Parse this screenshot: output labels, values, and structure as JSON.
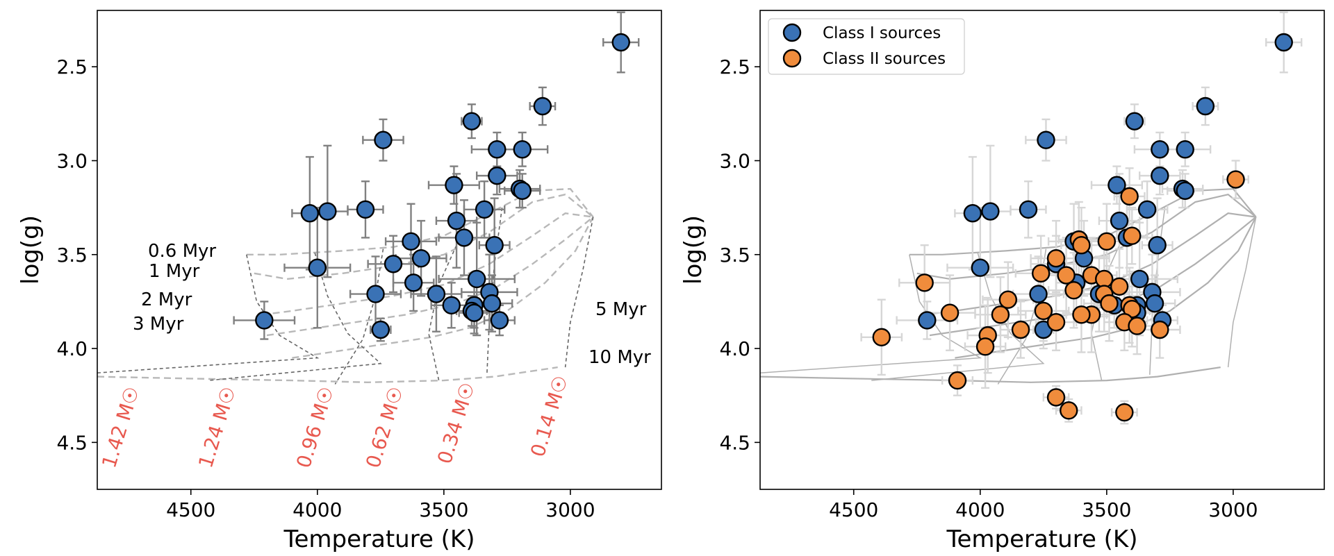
{
  "chart_data": [
    {
      "type": "scatter",
      "panel": "left",
      "xlabel": "Temperature (K)",
      "ylabel": "log(g)",
      "xlim": [
        4870,
        2640
      ],
      "ylim": [
        4.75,
        2.2
      ],
      "xticks": [
        "4500",
        "4000",
        "3500",
        "3000"
      ],
      "yticks": [
        "2.5",
        "3.0",
        "3.5",
        "4.0",
        "4.5"
      ],
      "x_inverted": true,
      "y_inverted": true,
      "grid": false,
      "series": [
        {
          "color": "#3a72b5",
          "points": [
            {
              "x": 2800,
              "y": 2.37,
              "xerr": 70,
              "yerr": 0.16
            },
            {
              "x": 3110,
              "y": 2.71,
              "xerr": 50,
              "yerr": 0.1
            },
            {
              "x": 3390,
              "y": 2.79,
              "xerr": 40,
              "yerr": 0.09
            },
            {
              "x": 3740,
              "y": 2.89,
              "xerr": 80,
              "yerr": 0.11
            },
            {
              "x": 3290,
              "y": 2.94,
              "xerr": 100,
              "yerr": 0.09
            },
            {
              "x": 3190,
              "y": 2.94,
              "xerr": 100,
              "yerr": 0.09
            },
            {
              "x": 3290,
              "y": 3.08,
              "xerr": 80,
              "yerr": 0.1
            },
            {
              "x": 3460,
              "y": 3.13,
              "xerr": 100,
              "yerr": 0.1
            },
            {
              "x": 3200,
              "y": 3.15,
              "xerr": 80,
              "yerr": 0.1
            },
            {
              "x": 3190,
              "y": 3.16,
              "xerr": 70,
              "yerr": 0.09
            },
            {
              "x": 3340,
              "y": 3.26,
              "xerr": 80,
              "yerr": 0.15
            },
            {
              "x": 3810,
              "y": 3.26,
              "xerr": 70,
              "yerr": 0.15
            },
            {
              "x": 4030,
              "y": 3.28,
              "xerr": 70,
              "yerr": 0.3
            },
            {
              "x": 3960,
              "y": 3.27,
              "xerr": 80,
              "yerr": 0.35
            },
            {
              "x": 3450,
              "y": 3.32,
              "xerr": 80,
              "yerr": 0.25
            },
            {
              "x": 3420,
              "y": 3.41,
              "xerr": 100,
              "yerr": 0.2
            },
            {
              "x": 3630,
              "y": 3.43,
              "xerr": 100,
              "yerr": 0.2
            },
            {
              "x": 3300,
              "y": 3.45,
              "xerr": 60,
              "yerr": 0.25
            },
            {
              "x": 3590,
              "y": 3.52,
              "xerr": 100,
              "yerr": 0.2
            },
            {
              "x": 3700,
              "y": 3.55,
              "xerr": 100,
              "yerr": 0.15
            },
            {
              "x": 4000,
              "y": 3.57,
              "xerr": 130,
              "yerr": 0.32
            },
            {
              "x": 3370,
              "y": 3.63,
              "xerr": 150,
              "yerr": 0.3
            },
            {
              "x": 3620,
              "y": 3.65,
              "xerr": 80,
              "yerr": 0.15
            },
            {
              "x": 3320,
              "y": 3.7,
              "xerr": 110,
              "yerr": 0.2
            },
            {
              "x": 3530,
              "y": 3.71,
              "xerr": 100,
              "yerr": 0.2
            },
            {
              "x": 3770,
              "y": 3.71,
              "xerr": 100,
              "yerr": 0.2
            },
            {
              "x": 3310,
              "y": 3.76,
              "xerr": 80,
              "yerr": 0.15
            },
            {
              "x": 3380,
              "y": 3.77,
              "xerr": 80,
              "yerr": 0.15
            },
            {
              "x": 3470,
              "y": 3.77,
              "xerr": 80,
              "yerr": 0.12
            },
            {
              "x": 3390,
              "y": 3.8,
              "xerr": 60,
              "yerr": 0.08
            },
            {
              "x": 3380,
              "y": 3.81,
              "xerr": 60,
              "yerr": 0.08
            },
            {
              "x": 3280,
              "y": 3.85,
              "xerr": 60,
              "yerr": 0.08
            },
            {
              "x": 4210,
              "y": 3.85,
              "xerr": 120,
              "yerr": 0.1
            },
            {
              "x": 3750,
              "y": 3.9,
              "xerr": 40,
              "yerr": 0.06
            }
          ]
        }
      ],
      "isochrone_labels": [
        "0.6 Myr",
        "1 Myr",
        "2 Myr",
        "3 Myr",
        "5 Myr",
        "10 Myr"
      ],
      "mass_track_labels": [
        "1.42 M☉",
        "1.24 M☉",
        "0.96 M☉",
        "0.62 M☉",
        "0.34 M☉",
        "0.14 M☉"
      ]
    },
    {
      "type": "scatter",
      "panel": "right",
      "xlabel": "Temperature (K)",
      "ylabel": "log(g)",
      "xlim": [
        4870,
        2640
      ],
      "ylim": [
        4.75,
        2.2
      ],
      "xticks": [
        "4500",
        "4000",
        "3500",
        "3000"
      ],
      "yticks": [
        "2.5",
        "3.0",
        "3.5",
        "4.0",
        "4.5"
      ],
      "x_inverted": true,
      "y_inverted": true,
      "grid": false,
      "legend": "top-left",
      "series": [
        {
          "name": "Class I sources",
          "color": "#3a72b5",
          "points": [
            {
              "x": 2800,
              "y": 2.37,
              "xerr": 70,
              "yerr": 0.16
            },
            {
              "x": 3110,
              "y": 2.71,
              "xerr": 50,
              "yerr": 0.1
            },
            {
              "x": 3390,
              "y": 2.79,
              "xerr": 40,
              "yerr": 0.09
            },
            {
              "x": 3740,
              "y": 2.89,
              "xerr": 80,
              "yerr": 0.11
            },
            {
              "x": 3290,
              "y": 2.94,
              "xerr": 100,
              "yerr": 0.09
            },
            {
              "x": 3190,
              "y": 2.94,
              "xerr": 100,
              "yerr": 0.09
            },
            {
              "x": 3290,
              "y": 3.08,
              "xerr": 80,
              "yerr": 0.1
            },
            {
              "x": 3460,
              "y": 3.13,
              "xerr": 100,
              "yerr": 0.1
            },
            {
              "x": 3200,
              "y": 3.15,
              "xerr": 80,
              "yerr": 0.1
            },
            {
              "x": 3190,
              "y": 3.16,
              "xerr": 70,
              "yerr": 0.09
            },
            {
              "x": 3340,
              "y": 3.26,
              "xerr": 80,
              "yerr": 0.15
            },
            {
              "x": 3810,
              "y": 3.26,
              "xerr": 70,
              "yerr": 0.15
            },
            {
              "x": 4030,
              "y": 3.28,
              "xerr": 70,
              "yerr": 0.3
            },
            {
              "x": 3960,
              "y": 3.27,
              "xerr": 80,
              "yerr": 0.35
            },
            {
              "x": 3450,
              "y": 3.32,
              "xerr": 80,
              "yerr": 0.25
            },
            {
              "x": 3420,
              "y": 3.41,
              "xerr": 100,
              "yerr": 0.2
            },
            {
              "x": 3630,
              "y": 3.43,
              "xerr": 100,
              "yerr": 0.2
            },
            {
              "x": 3300,
              "y": 3.45,
              "xerr": 60,
              "yerr": 0.25
            },
            {
              "x": 3590,
              "y": 3.52,
              "xerr": 100,
              "yerr": 0.2
            },
            {
              "x": 3700,
              "y": 3.55,
              "xerr": 100,
              "yerr": 0.15
            },
            {
              "x": 4000,
              "y": 3.57,
              "xerr": 130,
              "yerr": 0.32
            },
            {
              "x": 3370,
              "y": 3.63,
              "xerr": 150,
              "yerr": 0.3
            },
            {
              "x": 3620,
              "y": 3.65,
              "xerr": 80,
              "yerr": 0.15
            },
            {
              "x": 3320,
              "y": 3.7,
              "xerr": 110,
              "yerr": 0.2
            },
            {
              "x": 3530,
              "y": 3.71,
              "xerr": 100,
              "yerr": 0.2
            },
            {
              "x": 3770,
              "y": 3.71,
              "xerr": 100,
              "yerr": 0.2
            },
            {
              "x": 3310,
              "y": 3.76,
              "xerr": 80,
              "yerr": 0.15
            },
            {
              "x": 3380,
              "y": 3.77,
              "xerr": 80,
              "yerr": 0.15
            },
            {
              "x": 3470,
              "y": 3.77,
              "xerr": 80,
              "yerr": 0.12
            },
            {
              "x": 3390,
              "y": 3.8,
              "xerr": 60,
              "yerr": 0.08
            },
            {
              "x": 3380,
              "y": 3.81,
              "xerr": 60,
              "yerr": 0.08
            },
            {
              "x": 3280,
              "y": 3.85,
              "xerr": 60,
              "yerr": 0.08
            },
            {
              "x": 4210,
              "y": 3.85,
              "xerr": 120,
              "yerr": 0.1
            },
            {
              "x": 3750,
              "y": 3.9,
              "xerr": 40,
              "yerr": 0.06
            }
          ]
        },
        {
          "name": "Class II sources",
          "color": "#f08c3c",
          "points": [
            {
              "x": 2990,
              "y": 3.1,
              "xerr": 50,
              "yerr": 0.1
            },
            {
              "x": 3410,
              "y": 3.19,
              "xerr": 60,
              "yerr": 0.15
            },
            {
              "x": 3400,
              "y": 3.4,
              "xerr": 60,
              "yerr": 0.15
            },
            {
              "x": 3500,
              "y": 3.43,
              "xerr": 80,
              "yerr": 0.2
            },
            {
              "x": 3610,
              "y": 3.42,
              "xerr": 80,
              "yerr": 0.2
            },
            {
              "x": 3600,
              "y": 3.45,
              "xerr": 80,
              "yerr": 0.2
            },
            {
              "x": 3700,
              "y": 3.52,
              "xerr": 100,
              "yerr": 0.2
            },
            {
              "x": 3560,
              "y": 3.61,
              "xerr": 100,
              "yerr": 0.2
            },
            {
              "x": 3660,
              "y": 3.61,
              "xerr": 100,
              "yerr": 0.2
            },
            {
              "x": 3760,
              "y": 3.6,
              "xerr": 100,
              "yerr": 0.2
            },
            {
              "x": 3510,
              "y": 3.63,
              "xerr": 100,
              "yerr": 0.2
            },
            {
              "x": 4220,
              "y": 3.65,
              "xerr": 100,
              "yerr": 0.2
            },
            {
              "x": 3450,
              "y": 3.67,
              "xerr": 100,
              "yerr": 0.2
            },
            {
              "x": 3630,
              "y": 3.69,
              "xerr": 100,
              "yerr": 0.2
            },
            {
              "x": 3510,
              "y": 3.71,
              "xerr": 100,
              "yerr": 0.2
            },
            {
              "x": 3890,
              "y": 3.74,
              "xerr": 100,
              "yerr": 0.2
            },
            {
              "x": 3490,
              "y": 3.76,
              "xerr": 100,
              "yerr": 0.2
            },
            {
              "x": 3410,
              "y": 3.77,
              "xerr": 100,
              "yerr": 0.2
            },
            {
              "x": 3400,
              "y": 3.79,
              "xerr": 100,
              "yerr": 0.2
            },
            {
              "x": 3750,
              "y": 3.8,
              "xerr": 100,
              "yerr": 0.2
            },
            {
              "x": 4120,
              "y": 3.81,
              "xerr": 100,
              "yerr": 0.2
            },
            {
              "x": 3920,
              "y": 3.82,
              "xerr": 100,
              "yerr": 0.2
            },
            {
              "x": 3560,
              "y": 3.82,
              "xerr": 100,
              "yerr": 0.2
            },
            {
              "x": 3600,
              "y": 3.82,
              "xerr": 100,
              "yerr": 0.2
            },
            {
              "x": 3430,
              "y": 3.86,
              "xerr": 80,
              "yerr": 0.15
            },
            {
              "x": 3700,
              "y": 3.86,
              "xerr": 80,
              "yerr": 0.15
            },
            {
              "x": 3380,
              "y": 3.88,
              "xerr": 80,
              "yerr": 0.15
            },
            {
              "x": 3290,
              "y": 3.9,
              "xerr": 80,
              "yerr": 0.15
            },
            {
              "x": 3840,
              "y": 3.9,
              "xerr": 80,
              "yerr": 0.15
            },
            {
              "x": 3970,
              "y": 3.93,
              "xerr": 80,
              "yerr": 0.2
            },
            {
              "x": 4390,
              "y": 3.94,
              "xerr": 80,
              "yerr": 0.2
            },
            {
              "x": 3980,
              "y": 3.99,
              "xerr": 80,
              "yerr": 0.22
            },
            {
              "x": 4090,
              "y": 4.17,
              "xerr": 60,
              "yerr": 0.08
            },
            {
              "x": 3700,
              "y": 4.26,
              "xerr": 50,
              "yerr": 0.06
            },
            {
              "x": 3650,
              "y": 4.33,
              "xerr": 50,
              "yerr": 0.06
            },
            {
              "x": 3430,
              "y": 4.34,
              "xerr": 50,
              "yerr": 0.06
            }
          ]
        }
      ]
    }
  ],
  "models": {
    "tracks": [
      [
        [
          4280,
          3.5
        ],
        [
          4240,
          3.75
        ],
        [
          4150,
          3.93
        ],
        [
          4000,
          4.05
        ],
        [
          4870,
          4.13
        ]
      ],
      [
        [
          4010,
          3.49
        ],
        [
          3960,
          3.72
        ],
        [
          3880,
          3.92
        ],
        [
          3750,
          4.08
        ],
        [
          4430,
          4.17
        ]
      ],
      [
        [
          3740,
          3.47
        ],
        [
          3770,
          3.72
        ],
        [
          3820,
          3.95
        ],
        [
          3930,
          4.19
        ]
      ],
      [
        [
          3440,
          3.42
        ],
        [
          3520,
          3.66
        ],
        [
          3560,
          3.92
        ],
        [
          3520,
          4.17
        ]
      ],
      [
        [
          3270,
          3.25
        ],
        [
          3300,
          3.55
        ],
        [
          3320,
          3.85
        ],
        [
          3330,
          4.14
        ]
      ],
      [
        [
          2910,
          3.3
        ],
        [
          2950,
          3.58
        ],
        [
          3000,
          3.86
        ],
        [
          3020,
          4.1
        ]
      ]
    ],
    "isochrones": [
      [
        [
          4280,
          3.5
        ],
        [
          4150,
          3.5
        ],
        [
          3900,
          3.48
        ],
        [
          3700,
          3.46
        ],
        [
          3500,
          3.4
        ],
        [
          3320,
          3.28
        ],
        [
          3150,
          3.16
        ],
        [
          3000,
          3.15
        ],
        [
          2910,
          3.3
        ]
      ],
      [
        [
          4250,
          3.6
        ],
        [
          4120,
          3.63
        ],
        [
          3900,
          3.6
        ],
        [
          3700,
          3.56
        ],
        [
          3500,
          3.5
        ],
        [
          3320,
          3.38
        ],
        [
          3150,
          3.22
        ],
        [
          3020,
          3.18
        ],
        [
          2910,
          3.3
        ]
      ],
      [
        [
          4220,
          3.82
        ],
        [
          4100,
          3.8
        ],
        [
          3900,
          3.76
        ],
        [
          3700,
          3.72
        ],
        [
          3500,
          3.66
        ],
        [
          3320,
          3.55
        ],
        [
          3150,
          3.4
        ],
        [
          3020,
          3.28
        ],
        [
          2910,
          3.3
        ]
      ],
      [
        [
          4200,
          3.93
        ],
        [
          4050,
          3.9
        ],
        [
          3850,
          3.86
        ],
        [
          3650,
          3.82
        ],
        [
          3450,
          3.76
        ],
        [
          3300,
          3.68
        ],
        [
          3150,
          3.55
        ],
        [
          3020,
          3.42
        ],
        [
          2910,
          3.3
        ]
      ],
      [
        [
          4100,
          4.05
        ],
        [
          3950,
          4.02
        ],
        [
          3750,
          3.98
        ],
        [
          3550,
          3.94
        ],
        [
          3400,
          3.89
        ],
        [
          3250,
          3.8
        ],
        [
          3100,
          3.65
        ],
        [
          2980,
          3.48
        ],
        [
          2910,
          3.3
        ]
      ],
      [
        [
          4870,
          4.15
        ],
        [
          4500,
          4.16
        ],
        [
          4100,
          4.17
        ],
        [
          3800,
          4.18
        ],
        [
          3500,
          4.17
        ],
        [
          3300,
          4.15
        ],
        [
          3050,
          4.1
        ]
      ]
    ]
  }
}
